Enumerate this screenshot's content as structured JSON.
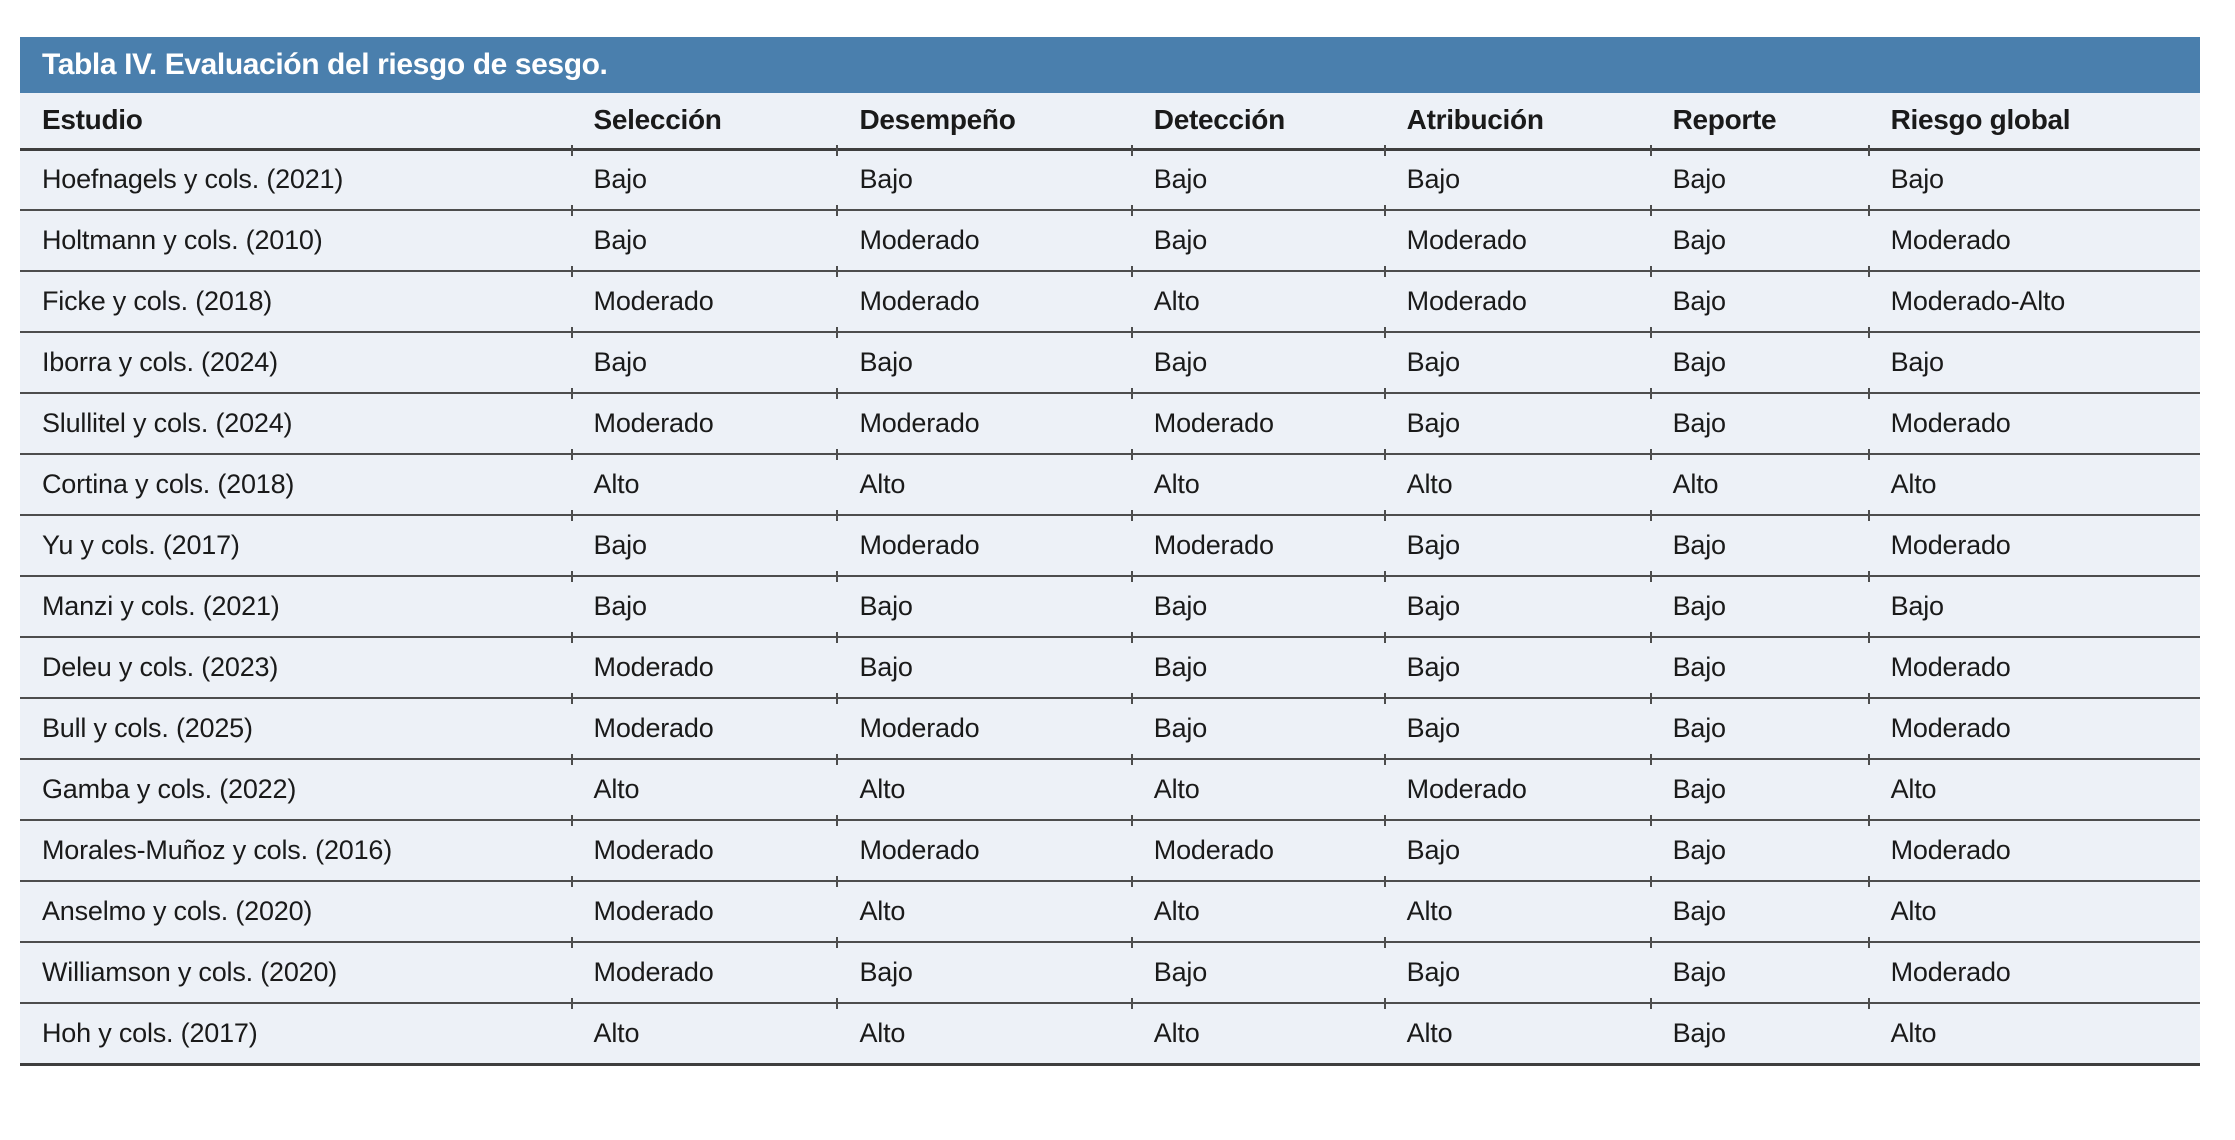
{
  "table": {
    "title": "Tabla IV. Evaluación del riesgo de sesgo.",
    "columns": [
      "Estudio",
      "Selección",
      "Desempeño",
      "Detección",
      "Atribución",
      "Reporte",
      "Riesgo global"
    ],
    "rows": [
      [
        "Hoefnagels y cols. (2021)",
        "Bajo",
        "Bajo",
        "Bajo",
        "Bajo",
        "Bajo",
        "Bajo"
      ],
      [
        "Holtmann y cols. (2010)",
        "Bajo",
        "Moderado",
        "Bajo",
        "Moderado",
        "Bajo",
        "Moderado"
      ],
      [
        "Ficke y cols. (2018)",
        "Moderado",
        "Moderado",
        "Alto",
        "Moderado",
        "Bajo",
        "Moderado-Alto"
      ],
      [
        "Iborra y cols. (2024)",
        "Bajo",
        "Bajo",
        "Bajo",
        "Bajo",
        "Bajo",
        "Bajo"
      ],
      [
        "Slullitel y cols. (2024)",
        "Moderado",
        "Moderado",
        "Moderado",
        "Bajo",
        "Bajo",
        "Moderado"
      ],
      [
        "Cortina y cols. (2018)",
        "Alto",
        "Alto",
        "Alto",
        "Alto",
        "Alto",
        "Alto"
      ],
      [
        "Yu y cols. (2017)",
        "Bajo",
        "Moderado",
        "Moderado",
        "Bajo",
        "Bajo",
        "Moderado"
      ],
      [
        "Manzi y cols. (2021)",
        "Bajo",
        "Bajo",
        "Bajo",
        "Bajo",
        "Bajo",
        "Bajo"
      ],
      [
        "Deleu y cols. (2023)",
        "Moderado",
        "Bajo",
        "Bajo",
        "Bajo",
        "Bajo",
        "Moderado"
      ],
      [
        "Bull y cols. (2025)",
        "Moderado",
        "Moderado",
        "Bajo",
        "Bajo",
        "Bajo",
        "Moderado"
      ],
      [
        "Gamba y cols. (2022)",
        "Alto",
        "Alto",
        "Alto",
        "Moderado",
        "Bajo",
        "Alto"
      ],
      [
        "Morales-Muñoz y cols. (2016)",
        "Moderado",
        "Moderado",
        "Moderado",
        "Bajo",
        "Bajo",
        "Moderado"
      ],
      [
        "Anselmo y cols. (2020)",
        "Moderado",
        "Alto",
        "Alto",
        "Alto",
        "Bajo",
        "Alto"
      ],
      [
        "Williamson y cols. (2020)",
        "Moderado",
        "Bajo",
        "Bajo",
        "Bajo",
        "Bajo",
        "Moderado"
      ],
      [
        "Hoh y cols. (2017)",
        "Alto",
        "Alto",
        "Alto",
        "Alto",
        "Bajo",
        "Alto"
      ]
    ]
  },
  "colors": {
    "header_bar": "#4a7fad",
    "row_background": "#edf1f7",
    "separator": "#4d4d4d",
    "text": "#1a1a1a",
    "title_text": "#ffffff"
  }
}
